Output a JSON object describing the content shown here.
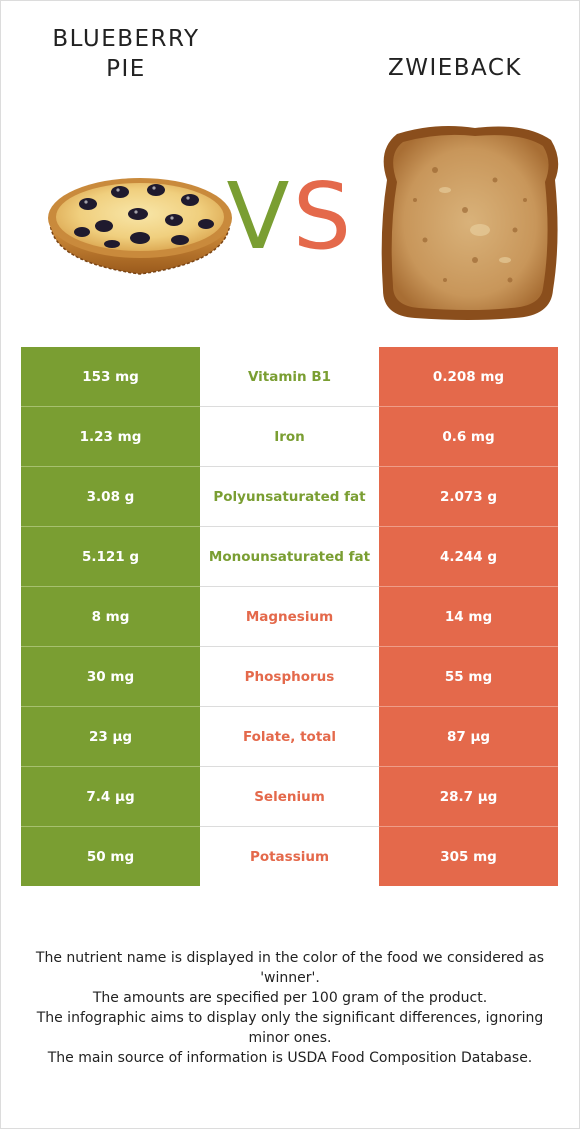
{
  "header": {
    "left_food": "BLUEBERRY\nPIE",
    "right_food": "ZWIEBACK",
    "vs_v": "V",
    "vs_s": "S"
  },
  "colors": {
    "left": "#7a9e32",
    "right": "#e4694b"
  },
  "chart_data": {
    "type": "table",
    "columns": [
      "BLUEBERRY PIE",
      "nutrient",
      "ZWIEBACK"
    ],
    "rows": [
      {
        "nutrient": "Vitamin B1",
        "left": "153 mg",
        "right": "0.208 mg",
        "winner": "left"
      },
      {
        "nutrient": "Iron",
        "left": "1.23 mg",
        "right": "0.6 mg",
        "winner": "left"
      },
      {
        "nutrient": "Polyunsaturated fat",
        "left": "3.08 g",
        "right": "2.073 g",
        "winner": "left"
      },
      {
        "nutrient": "Monounsaturated fat",
        "left": "5.121 g",
        "right": "4.244 g",
        "winner": "left"
      },
      {
        "nutrient": "Magnesium",
        "left": "8 mg",
        "right": "14 mg",
        "winner": "right"
      },
      {
        "nutrient": "Phosphorus",
        "left": "30 mg",
        "right": "55 mg",
        "winner": "right"
      },
      {
        "nutrient": "Folate, total",
        "left": "23 µg",
        "right": "87 µg",
        "winner": "right"
      },
      {
        "nutrient": "Selenium",
        "left": "7.4 µg",
        "right": "28.7 µg",
        "winner": "right"
      },
      {
        "nutrient": "Potassium",
        "left": "50 mg",
        "right": "305 mg",
        "winner": "right"
      }
    ]
  },
  "notes": [
    "The nutrient name is displayed in the color of the food we considered as 'winner'.",
    "The amounts are specified per 100 gram of the product.",
    "The infographic aims to display only the significant differences, ignoring minor ones.",
    "The main source of information is USDA Food Composition Database."
  ]
}
